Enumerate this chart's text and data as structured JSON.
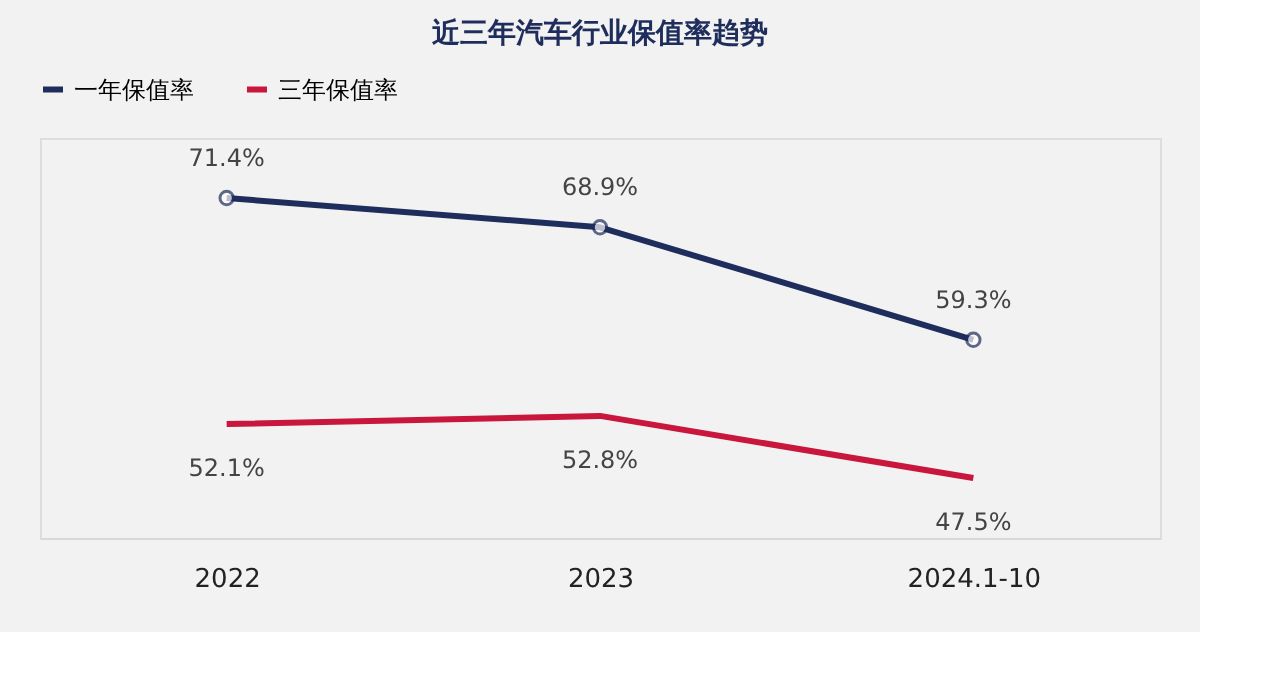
{
  "chart_data": {
    "type": "line",
    "title": "近三年汽车行业保值率趋势",
    "categories": [
      "2022",
      "2023",
      "2024.1-10"
    ],
    "series": [
      {
        "name": "一年保值率",
        "color": "#1f2d5c",
        "marker": "circle",
        "values": [
          71.4,
          68.9,
          59.3
        ],
        "value_labels": [
          "71.4%",
          "68.9%",
          "59.3%"
        ]
      },
      {
        "name": "三年保值率",
        "color": "#c8163c",
        "marker": "none",
        "values": [
          52.1,
          52.8,
          47.5
        ],
        "value_labels": [
          "52.1%",
          "52.8%",
          "47.5%"
        ]
      }
    ],
    "legend": "top",
    "grid": false
  }
}
